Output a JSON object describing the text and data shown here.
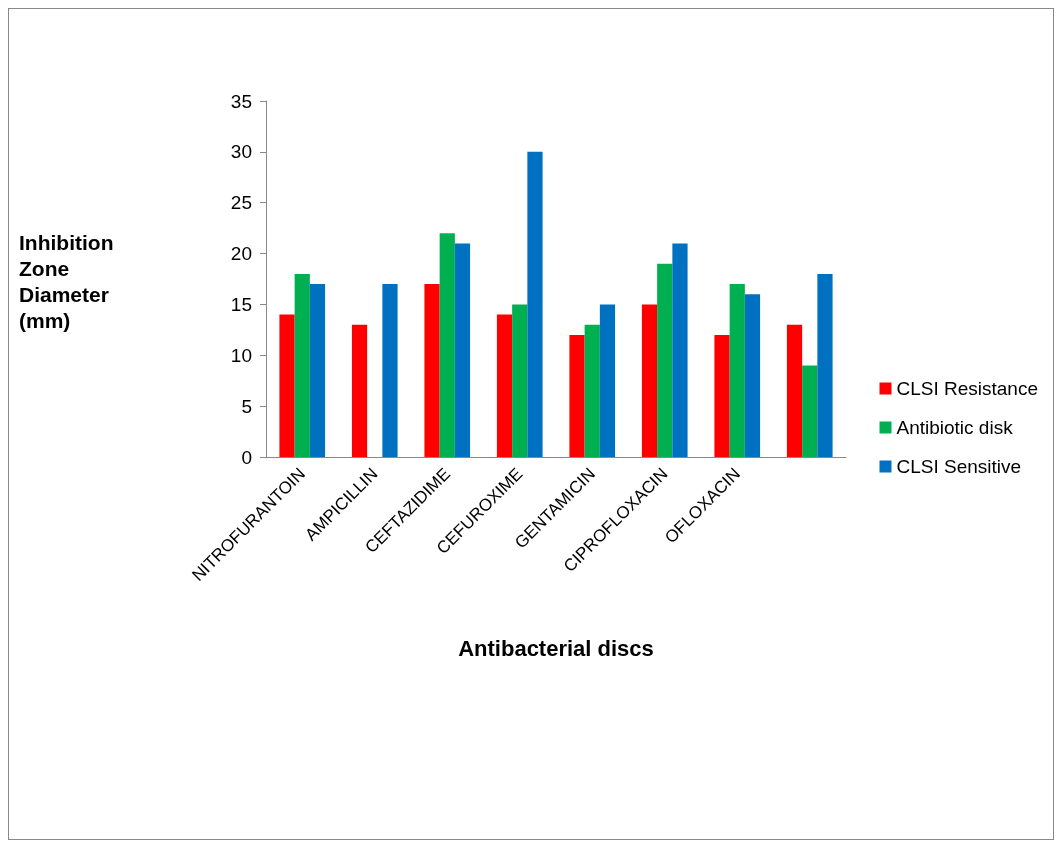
{
  "chart_data": {
    "type": "bar",
    "xlabel": "Antibacterial discs",
    "ylabel": "Inhibition Zone Diameter (mm)",
    "categories": [
      "NITROFURANTOIN",
      "AMPICILLIN",
      "CEFTAZIDIME",
      "CEFUROXIME",
      "GENTAMICIN",
      "CIPROFLOXACIN",
      "OFLOXACIN",
      null
    ],
    "series": [
      {
        "name": "CLSI Resistance",
        "color": "#ff0000",
        "values": [
          14,
          13,
          17,
          14,
          12,
          15,
          12,
          13
        ]
      },
      {
        "name": "Antibiotic disk",
        "color": "#00b050",
        "values": [
          18,
          null,
          22,
          15,
          13,
          19,
          17,
          9
        ]
      },
      {
        "name": "CLSI Sensitive",
        "color": "#0070c0",
        "values": [
          17,
          17,
          21,
          30,
          15,
          21,
          16,
          18
        ]
      }
    ],
    "ylim": [
      0,
      35
    ],
    "yticks": [
      0,
      5,
      10,
      15,
      20,
      25,
      30,
      35
    ],
    "grid": false,
    "legend": "right"
  }
}
